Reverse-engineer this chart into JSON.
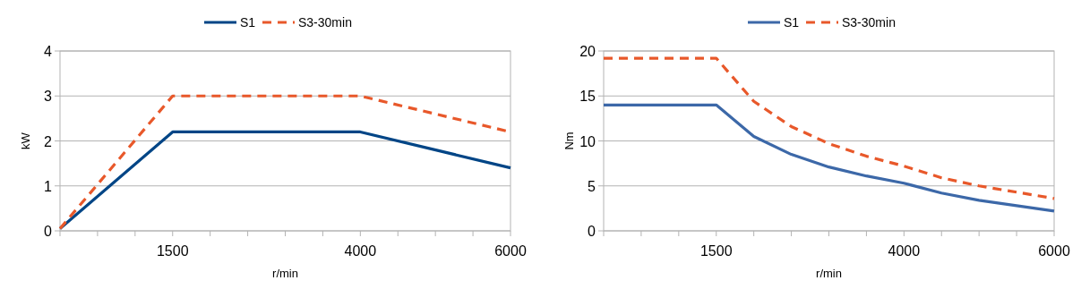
{
  "chart_data": [
    {
      "type": "line",
      "xlabel": "r/min",
      "ylabel": "kW",
      "xlim": [
        0,
        6000
      ],
      "ylim": [
        0,
        4
      ],
      "yticks": [
        0,
        1,
        2,
        3,
        4
      ],
      "xticks": [
        {
          "value": 0,
          "label": null
        },
        {
          "value": 500,
          "label": null
        },
        {
          "value": 1000,
          "label": null
        },
        1500,
        {
          "value": 2000,
          "label": null
        },
        {
          "value": 2500,
          "label": null
        },
        {
          "value": 3000,
          "label": null
        },
        {
          "value": 3500,
          "label": null
        },
        4000,
        {
          "value": 4500,
          "label": null
        },
        {
          "value": 5000,
          "label": null
        },
        {
          "value": 5500,
          "label": null
        },
        6000
      ],
      "grid": "y",
      "legend": "top",
      "series": [
        {
          "name": "S1",
          "color": "#004586",
          "line_style": "solid",
          "x": [
            0,
            1500,
            4000,
            6000
          ],
          "values": [
            0.05,
            2.2,
            2.2,
            1.4
          ]
        },
        {
          "name": "S3-30min",
          "color": "#e8582a",
          "line_style": "dashed",
          "x": [
            0,
            1500,
            4000,
            6000
          ],
          "values": [
            0.05,
            3.0,
            3.0,
            2.2
          ]
        }
      ]
    },
    {
      "type": "line",
      "xlabel": "r/min",
      "ylabel": "Nm",
      "xlim": [
        0,
        6000
      ],
      "ylim": [
        0,
        20
      ],
      "yticks": [
        0,
        5,
        10,
        15,
        20
      ],
      "xticks": [
        {
          "value": 0,
          "label": null
        },
        {
          "value": 500,
          "label": null
        },
        {
          "value": 1000,
          "label": null
        },
        1500,
        {
          "value": 2000,
          "label": null
        },
        {
          "value": 2500,
          "label": null
        },
        {
          "value": 3000,
          "label": null
        },
        {
          "value": 3500,
          "label": null
        },
        4000,
        {
          "value": 4500,
          "label": null
        },
        {
          "value": 5000,
          "label": null
        },
        {
          "value": 5500,
          "label": null
        },
        6000
      ],
      "grid": "y",
      "legend": "top",
      "series": [
        {
          "name": "S1",
          "color": "#3c68a8",
          "line_style": "solid",
          "x": [
            0,
            500,
            1000,
            1500,
            2000,
            2500,
            3000,
            3500,
            4000,
            4500,
            5000,
            5500,
            6000
          ],
          "values": [
            14,
            14,
            14,
            14,
            10.5,
            8.5,
            7.1,
            6.1,
            5.3,
            4.2,
            3.4,
            2.8,
            2.2
          ]
        },
        {
          "name": "S3-30min",
          "color": "#e8582a",
          "line_style": "dashed",
          "x": [
            0,
            500,
            1000,
            1500,
            2000,
            2500,
            3000,
            3500,
            4000,
            4500,
            5000,
            5500,
            6000
          ],
          "values": [
            19.2,
            19.2,
            19.2,
            19.2,
            14.4,
            11.6,
            9.7,
            8.3,
            7.2,
            5.9,
            5.0,
            4.3,
            3.6
          ]
        }
      ]
    }
  ]
}
